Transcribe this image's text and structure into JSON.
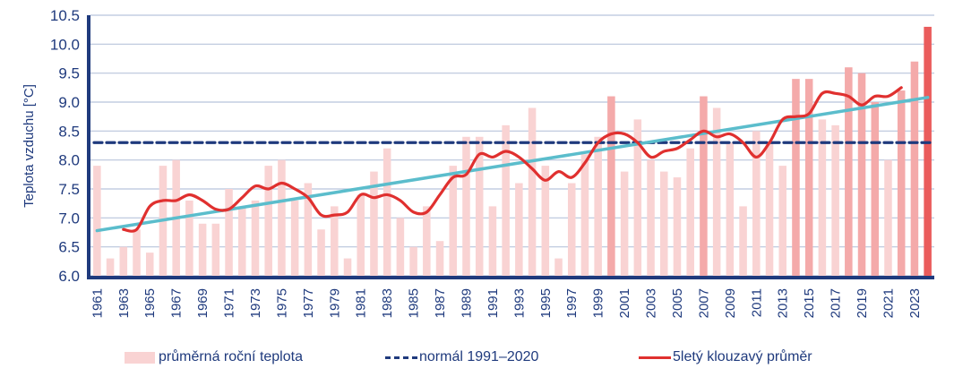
{
  "chart_data": {
    "type": "bar",
    "title": "",
    "xlabel": "",
    "ylabel": "Teplota vzduchu [°C]",
    "ylim": [
      6.0,
      10.5
    ],
    "yticks": [
      "6.0",
      "6.5",
      "7.0",
      "7.5",
      "8.0",
      "8.5",
      "9.0",
      "9.5",
      "10.0",
      "10.5"
    ],
    "grid": true,
    "legend_position": "bottom",
    "categories": [
      1961,
      1962,
      1963,
      1964,
      1965,
      1966,
      1967,
      1968,
      1969,
      1970,
      1971,
      1972,
      1973,
      1974,
      1975,
      1976,
      1977,
      1978,
      1979,
      1980,
      1981,
      1982,
      1983,
      1984,
      1985,
      1986,
      1987,
      1988,
      1989,
      1990,
      1991,
      1992,
      1993,
      1994,
      1995,
      1996,
      1997,
      1998,
      1999,
      2000,
      2001,
      2002,
      2003,
      2004,
      2005,
      2006,
      2007,
      2008,
      2009,
      2010,
      2011,
      2012,
      2013,
      2014,
      2015,
      2016,
      2017,
      2018,
      2019,
      2020,
      2021,
      2022,
      2023,
      2024
    ],
    "xtick_labels": [
      "1961",
      "1963",
      "1965",
      "1967",
      "1969",
      "1971",
      "1973",
      "1975",
      "1977",
      "1979",
      "1981",
      "1983",
      "1985",
      "1987",
      "1989",
      "1991",
      "1993",
      "1995",
      "1997",
      "1999",
      "2001",
      "2003",
      "2005",
      "2007",
      "2009",
      "2011",
      "2013",
      "2015",
      "2017",
      "2019",
      "2021",
      "2023"
    ],
    "series": [
      {
        "name": "průměrná roční teplota",
        "kind": "bar",
        "color": "#f9d3d3",
        "values": [
          7.9,
          6.3,
          6.5,
          6.8,
          6.4,
          7.9,
          8.0,
          7.3,
          6.9,
          6.9,
          7.5,
          7.2,
          7.3,
          7.9,
          8.0,
          7.3,
          7.6,
          6.8,
          7.2,
          6.3,
          7.4,
          7.8,
          8.2,
          7.0,
          6.5,
          7.2,
          6.6,
          7.9,
          8.4,
          8.4,
          7.2,
          8.6,
          7.6,
          8.9,
          7.9,
          6.3,
          7.6,
          8.1,
          8.4,
          9.1,
          7.8,
          8.7,
          8.0,
          7.8,
          7.7,
          8.2,
          9.1,
          8.9,
          8.3,
          7.2,
          8.5,
          8.3,
          7.9,
          9.4,
          9.4,
          8.7,
          8.6,
          9.6,
          9.5,
          9.0,
          8.0,
          9.2,
          9.7,
          10.3
        ],
        "highlight_years": {
          "2000": "#f4aaaa",
          "2007": "#f4aaaa",
          "2014": "#f4aaaa",
          "2015": "#f4aaaa",
          "2018": "#f4aaaa",
          "2019": "#f4aaaa",
          "2020": "#f4aaaa",
          "2022": "#f4aaaa",
          "2023": "#f4aaaa",
          "2024": "#ea5c5c"
        }
      },
      {
        "name": "normál 1991–2020",
        "kind": "dashed-line",
        "color": "#1f3a7d",
        "value": 8.3
      },
      {
        "name": "5letý klouzavý průměr",
        "kind": "line",
        "color": "#e0302f",
        "x": [
          1963,
          1964,
          1965,
          1966,
          1967,
          1968,
          1969,
          1970,
          1971,
          1972,
          1973,
          1974,
          1975,
          1976,
          1977,
          1978,
          1979,
          1980,
          1981,
          1982,
          1983,
          1984,
          1985,
          1986,
          1987,
          1988,
          1989,
          1990,
          1991,
          1992,
          1993,
          1994,
          1995,
          1996,
          1997,
          1998,
          1999,
          2000,
          2001,
          2002,
          2003,
          2004,
          2005,
          2006,
          2007,
          2008,
          2009,
          2010,
          2011,
          2012,
          2013,
          2014,
          2015,
          2016,
          2017,
          2018,
          2019,
          2020,
          2021,
          2022
        ],
        "values": [
          6.8,
          6.8,
          7.2,
          7.3,
          7.3,
          7.4,
          7.3,
          7.15,
          7.15,
          7.35,
          7.55,
          7.5,
          7.6,
          7.5,
          7.35,
          7.05,
          7.05,
          7.1,
          7.4,
          7.35,
          7.4,
          7.3,
          7.1,
          7.1,
          7.4,
          7.7,
          7.75,
          8.1,
          8.05,
          8.15,
          8.05,
          7.85,
          7.65,
          7.8,
          7.7,
          7.95,
          8.3,
          8.45,
          8.45,
          8.3,
          8.05,
          8.15,
          8.2,
          8.35,
          8.5,
          8.4,
          8.45,
          8.3,
          8.05,
          8.3,
          8.7,
          8.75,
          8.8,
          9.15,
          9.15,
          9.1,
          8.95,
          9.1,
          9.1,
          9.25
        ]
      },
      {
        "name": "trend",
        "kind": "line",
        "color": "#5bbdcc",
        "x": [
          1961,
          2024
        ],
        "values": [
          6.78,
          9.08
        ]
      }
    ]
  },
  "legend": {
    "items": [
      {
        "label": "průměrná roční teplota"
      },
      {
        "label": "normál 1991–2020"
      },
      {
        "label": "5letý klouzavý průměr"
      }
    ]
  }
}
